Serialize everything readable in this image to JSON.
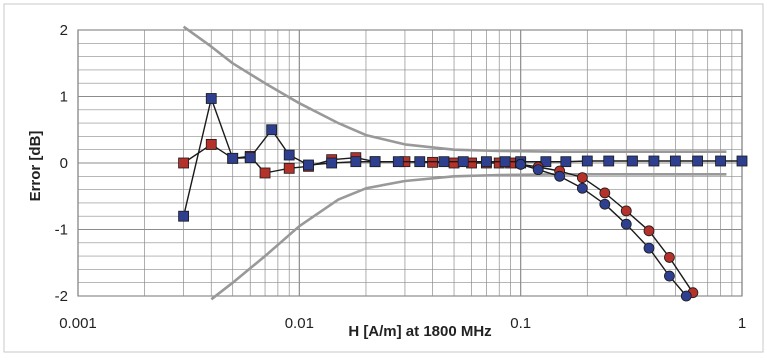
{
  "chart_data": {
    "type": "scatter",
    "title": "",
    "xlabel": "H [A/m] at 1800 MHz",
    "ylabel": "Error [dB]",
    "x_scale": "log",
    "xlim": [
      0.001,
      1
    ],
    "ylim": [
      -2,
      2
    ],
    "x_tick_labels": [
      "0.001",
      "0.01",
      "0.1",
      "1"
    ],
    "y_tick_labels": [
      "2",
      "1",
      "0",
      "-1",
      "-2"
    ],
    "grid": true,
    "legend": "none",
    "colors": {
      "plot_bg": "#ffffff",
      "grid": "#8c8c8c",
      "frame": "#c8c8c8",
      "envelope": "#999999",
      "red_marker": "#b5322b",
      "blue_marker": "#2f3f8f",
      "line": "#1a1a1a",
      "text": "#222222"
    },
    "series": [
      {
        "marker": "square",
        "color": "#b5322b",
        "points": [
          [
            0.003,
            0.0
          ],
          [
            0.004,
            0.28
          ],
          [
            0.005,
            0.07
          ],
          [
            0.006,
            0.1
          ],
          [
            0.007,
            -0.15
          ],
          [
            0.009,
            -0.08
          ],
          [
            0.011,
            -0.05
          ],
          [
            0.014,
            0.05
          ],
          [
            0.018,
            0.08
          ],
          [
            0.022,
            0.02
          ],
          [
            0.03,
            0.02
          ],
          [
            0.04,
            0.01
          ],
          [
            0.05,
            0.0
          ],
          [
            0.06,
            0.0
          ],
          [
            0.07,
            0.0
          ],
          [
            0.08,
            0.0
          ],
          [
            0.09,
            0.0
          ],
          [
            0.1,
            0.0
          ]
        ]
      },
      {
        "marker": "square",
        "color": "#2f3f8f",
        "points": [
          [
            0.003,
            -0.8
          ],
          [
            0.004,
            0.97
          ],
          [
            0.005,
            0.07
          ],
          [
            0.006,
            0.08
          ],
          [
            0.0075,
            0.5
          ],
          [
            0.009,
            0.12
          ],
          [
            0.011,
            -0.03
          ],
          [
            0.014,
            0.0
          ],
          [
            0.018,
            0.02
          ],
          [
            0.022,
            0.02
          ],
          [
            0.028,
            0.02
          ],
          [
            0.035,
            0.02
          ],
          [
            0.045,
            0.02
          ],
          [
            0.055,
            0.02
          ],
          [
            0.07,
            0.02
          ],
          [
            0.085,
            0.02
          ],
          [
            0.1,
            0.02
          ],
          [
            0.13,
            0.02
          ],
          [
            0.16,
            0.02
          ],
          [
            0.2,
            0.03
          ],
          [
            0.25,
            0.03
          ],
          [
            0.32,
            0.03
          ],
          [
            0.4,
            0.03
          ],
          [
            0.5,
            0.03
          ],
          [
            0.63,
            0.03
          ],
          [
            0.8,
            0.03
          ],
          [
            1.0,
            0.03
          ]
        ]
      },
      {
        "marker": "circle",
        "color": "#b5322b",
        "points": [
          [
            0.1,
            -0.02
          ],
          [
            0.12,
            -0.06
          ],
          [
            0.15,
            -0.12
          ],
          [
            0.19,
            -0.22
          ],
          [
            0.24,
            -0.45
          ],
          [
            0.3,
            -0.72
          ],
          [
            0.38,
            -1.02
          ],
          [
            0.47,
            -1.42
          ],
          [
            0.6,
            -1.95
          ]
        ]
      },
      {
        "marker": "circle",
        "color": "#2f3f8f",
        "points": [
          [
            0.1,
            -0.02
          ],
          [
            0.12,
            -0.1
          ],
          [
            0.15,
            -0.2
          ],
          [
            0.19,
            -0.38
          ],
          [
            0.24,
            -0.62
          ],
          [
            0.3,
            -0.92
          ],
          [
            0.38,
            -1.28
          ],
          [
            0.47,
            -1.7
          ],
          [
            0.56,
            -2.0
          ]
        ]
      }
    ],
    "envelope": {
      "upper": [
        [
          0.003,
          2.05
        ],
        [
          0.004,
          1.75
        ],
        [
          0.005,
          1.5
        ],
        [
          0.007,
          1.2
        ],
        [
          0.01,
          0.9
        ],
        [
          0.015,
          0.6
        ],
        [
          0.02,
          0.42
        ],
        [
          0.03,
          0.28
        ],
        [
          0.05,
          0.2
        ],
        [
          0.08,
          0.18
        ],
        [
          0.15,
          0.17
        ],
        [
          0.3,
          0.17
        ],
        [
          0.6,
          0.17
        ],
        [
          0.85,
          0.17
        ]
      ],
      "lower": [
        [
          0.004,
          -2.05
        ],
        [
          0.005,
          -1.8
        ],
        [
          0.007,
          -1.4
        ],
        [
          0.01,
          -0.95
        ],
        [
          0.015,
          -0.55
        ],
        [
          0.02,
          -0.38
        ],
        [
          0.03,
          -0.27
        ],
        [
          0.05,
          -0.2
        ],
        [
          0.08,
          -0.18
        ],
        [
          0.15,
          -0.17
        ],
        [
          0.3,
          -0.17
        ],
        [
          0.6,
          -0.17
        ],
        [
          0.85,
          -0.17
        ]
      ]
    }
  }
}
